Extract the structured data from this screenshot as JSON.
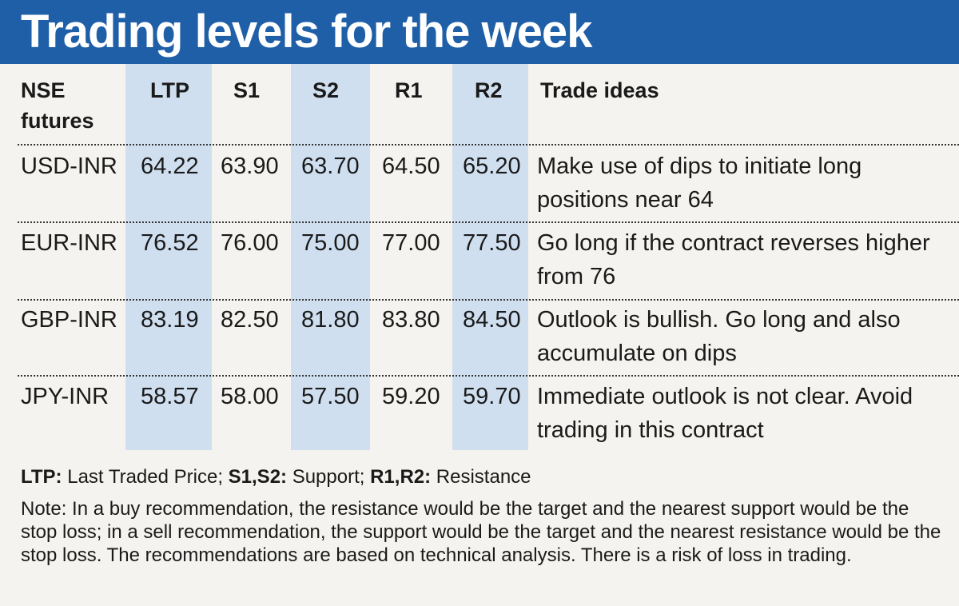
{
  "title": "Trading levels for the week",
  "headers": {
    "instrument": [
      "NSE",
      "futures"
    ],
    "ltp": "LTP",
    "s1": "S1",
    "s2": "S2",
    "r1": "R1",
    "r2": "R2",
    "ideas": "Trade ideas"
  },
  "rows": [
    {
      "instrument": "USD-INR",
      "ltp": "64.22",
      "s1": "63.90",
      "s2": "63.70",
      "r1": "64.50",
      "r2": "65.20",
      "idea": "Make use of dips to initiate long positions near 64"
    },
    {
      "instrument": "EUR-INR",
      "ltp": "76.52",
      "s1": "76.00",
      "s2": "75.00",
      "r1": "77.00",
      "r2": "77.50",
      "idea": "Go long if the contract reverses higher from 76"
    },
    {
      "instrument": "GBP-INR",
      "ltp": "83.19",
      "s1": "82.50",
      "s2": "81.80",
      "r1": "83.80",
      "r2": "84.50",
      "idea": "Outlook is bullish. Go long and also accumulate on dips"
    },
    {
      "instrument": "JPY-INR",
      "ltp": "58.57",
      "s1": "58.00",
      "s2": "57.50",
      "r1": "59.20",
      "r2": "59.70",
      "idea": "Immediate outlook is not clear. Avoid trading in this contract"
    }
  ],
  "legend": {
    "ltp_term": "LTP:",
    "ltp_def": " Last Traded Price; ",
    "s_term": "S1,S2:",
    "s_def": " Support; ",
    "r_term": "R1,R2:",
    "r_def": " Resistance"
  },
  "note": "Note: In a buy recommendation, the resistance would be the target and the nearest support would be the stop loss; in a sell recommendation, the support would be the target and the nearest resistance would be the stop loss. The recommendations are based on technical analysis. There is a risk of loss in trading.",
  "colors": {
    "title_bg": "#1f5fa8",
    "column_band": "#cfdff0",
    "page_bg": "#f4f3ef"
  }
}
